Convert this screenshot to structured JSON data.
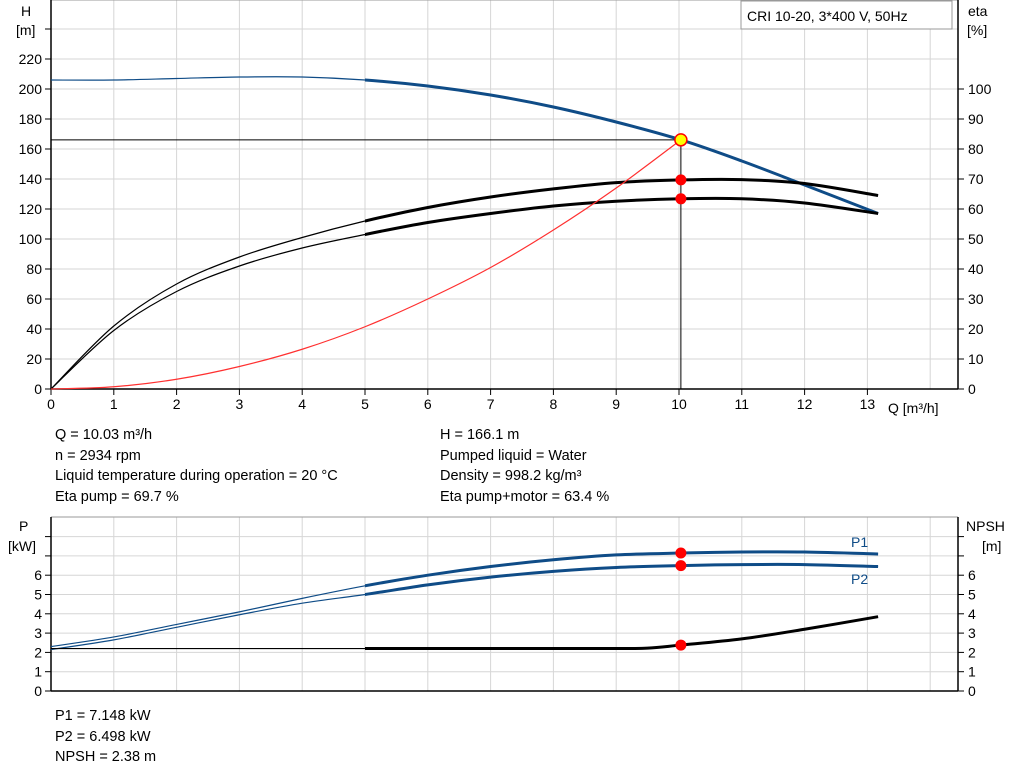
{
  "chart_data": [
    {
      "type": "line",
      "title": "CRI 10-20, 3*400 V, 50Hz",
      "xlabel": "Q [m³/h]",
      "ylabel": "H",
      "ylabel_unit": "[m]",
      "y2label": "eta",
      "y2label_unit": "[%]",
      "xticks": [
        0,
        1,
        2,
        3,
        4,
        5,
        6,
        7,
        8,
        9,
        10,
        11,
        12,
        13
      ],
      "yticks": [
        0,
        20,
        40,
        60,
        80,
        100,
        120,
        140,
        160,
        180,
        200,
        220
      ],
      "y2ticks": [
        0,
        10,
        20,
        30,
        40,
        50,
        60,
        70,
        80,
        90,
        100
      ],
      "grid": true,
      "series": [
        {
          "key": "H",
          "axis": "H",
          "color": "#0f4c87",
          "x": [
            0,
            1,
            2,
            3,
            4,
            5,
            6,
            7,
            8,
            9,
            10.03,
            11,
            12,
            13.17
          ],
          "y": [
            206,
            206,
            207,
            208,
            208,
            206,
            202,
            196,
            188,
            178,
            166.1,
            152,
            136,
            117
          ]
        },
        {
          "key": "eta_pump",
          "axis": "eta",
          "color": "#000000",
          "x": [
            0,
            1,
            2,
            3,
            4,
            5,
            6,
            7,
            8,
            9,
            10.03,
            11,
            12,
            13.17
          ],
          "y": [
            0,
            21,
            35,
            44,
            50.5,
            56,
            60.5,
            64,
            66.7,
            68.8,
            69.7,
            69.8,
            68.5,
            64.5
          ]
        },
        {
          "key": "eta_pump_motor",
          "axis": "eta",
          "color": "#000000",
          "x": [
            0,
            1,
            2,
            3,
            4,
            5,
            6,
            7,
            8,
            9,
            10.03,
            11,
            12,
            13.17
          ],
          "y": [
            0,
            19.5,
            32.5,
            41,
            47,
            51.5,
            55.5,
            58.5,
            61,
            62.6,
            63.4,
            63.4,
            62,
            58.5
          ]
        },
        {
          "key": "system",
          "axis": "H",
          "color": "#ff3030",
          "x": [
            0,
            1,
            2,
            3,
            4,
            5,
            6,
            7,
            8,
            9,
            10.03
          ],
          "y": [
            0,
            1.5,
            6.5,
            15,
            26.5,
            41.5,
            60,
            81,
            106,
            134,
            166.1
          ]
        }
      ],
      "duty_point": {
        "Q": 10.03,
        "H": 166.1,
        "eta_pump": 69.7,
        "eta_pump_motor": 63.4
      },
      "info_left": [
        "Q = 10.03 m³/h",
        "n = 2934 rpm",
        "Liquid temperature during operation = 20 °C",
        "Eta pump = 69.7 %"
      ],
      "info_right": [
        "H = 166.1 m",
        "Pumped liquid = Water",
        "Density = 998.2 kg/m³",
        "Eta pump+motor = 63.4 %"
      ]
    },
    {
      "type": "line",
      "ylabel": "P",
      "ylabel_unit": "[kW]",
      "y2label": "NPSH",
      "y2label_unit": "[m]",
      "yticks": [
        0,
        1,
        2,
        3,
        4,
        5,
        6
      ],
      "y2ticks": [
        0,
        1,
        2,
        3,
        4,
        5,
        6
      ],
      "grid": true,
      "series": [
        {
          "key": "P1",
          "name": "P1",
          "axis": "P",
          "color": "#0f4c87",
          "x": [
            0,
            1,
            2,
            3,
            4,
            5,
            6,
            7,
            8,
            9,
            10.03,
            11,
            12,
            13.17
          ],
          "y": [
            2.3,
            2.8,
            3.45,
            4.1,
            4.8,
            5.45,
            6.0,
            6.45,
            6.8,
            7.05,
            7.148,
            7.2,
            7.2,
            7.1
          ]
        },
        {
          "key": "P2",
          "name": "P2",
          "axis": "P",
          "color": "#0f4c87",
          "x": [
            0,
            1,
            2,
            3,
            4,
            5,
            6,
            7,
            8,
            9,
            10.03,
            11,
            12,
            13.17
          ],
          "y": [
            2.15,
            2.65,
            3.3,
            3.95,
            4.55,
            5.0,
            5.5,
            5.9,
            6.2,
            6.4,
            6.498,
            6.55,
            6.55,
            6.45
          ]
        },
        {
          "key": "NPSH",
          "axis": "NPSH",
          "color": "#000000",
          "x": [
            0,
            2,
            4,
            5,
            6,
            7,
            8,
            9,
            9.5,
            10.03,
            11,
            12,
            13.17
          ],
          "y": [
            2.2,
            2.2,
            2.2,
            2.2,
            2.2,
            2.2,
            2.2,
            2.2,
            2.22,
            2.38,
            2.7,
            3.2,
            3.85
          ]
        }
      ],
      "duty_point": {
        "Q": 10.03,
        "P1": 7.148,
        "P2": 6.498,
        "NPSH": 2.38
      },
      "info": [
        "P1 = 7.148 kW",
        "P2 = 6.498 kW",
        "NPSH = 2.38 m"
      ]
    }
  ]
}
